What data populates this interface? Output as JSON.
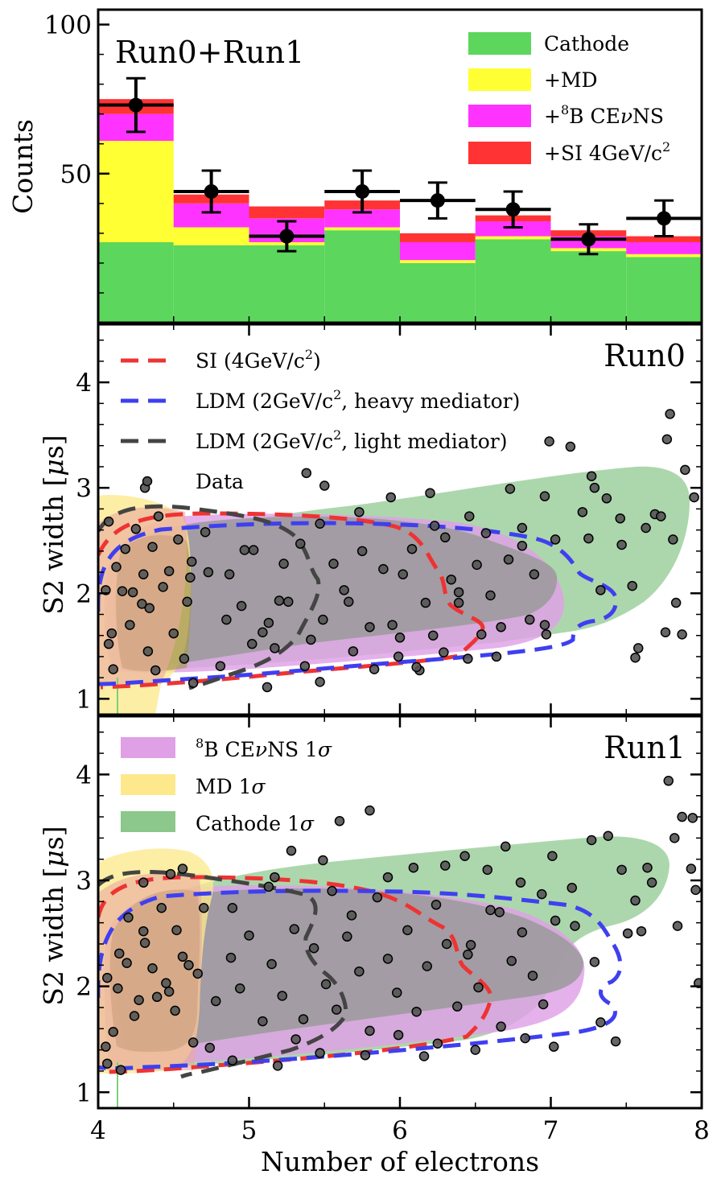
{
  "chart_data": [
    {
      "type": "bar",
      "panel": "top",
      "stacked": true,
      "title": "Run0+Run1",
      "xlabel": "",
      "ylabel": "Counts",
      "xlim": [
        4,
        8
      ],
      "ylim": [
        0,
        105
      ],
      "yticks": [
        50,
        100
      ],
      "bin_edges": [
        4.0,
        4.5,
        5.0,
        5.5,
        6.0,
        6.5,
        7.0,
        7.5,
        8.0
      ],
      "series": [
        {
          "name": "Cathode",
          "color": "#5cd65c",
          "values": [
            27,
            26,
            26,
            31,
            20,
            28,
            24,
            22
          ]
        },
        {
          "name": "+MD",
          "color": "#ffff33",
          "values": [
            34,
            6,
            1,
            1,
            1,
            1,
            1,
            1
          ]
        },
        {
          "name": "+8B CEvNS",
          "color": "#ff33ff",
          "values": [
            9,
            8,
            8,
            6,
            6,
            5,
            4,
            4
          ]
        },
        {
          "name": "+SI 4GeV/c2",
          "color": "#ff3333",
          "values": [
            5,
            3,
            4,
            3,
            3,
            2,
            2,
            2
          ]
        }
      ],
      "data": {
        "name": "Data",
        "x": [
          4.25,
          4.75,
          5.25,
          5.75,
          6.25,
          6.75,
          7.25,
          7.75
        ],
        "y": [
          73,
          44,
          29,
          44,
          41,
          38,
          28,
          35
        ],
        "yerr": [
          9,
          7,
          5,
          7,
          6,
          6,
          5,
          6
        ]
      },
      "legend": {
        "position": "top-right",
        "cathode": "Cathode",
        "md": "+MD",
        "cevns_sup": "8",
        "cevns_main": "B CE",
        "cevns_nu": "ν",
        "cevns_end": "NS",
        "si_main": "+SI 4GeV/c",
        "si_sup": "2"
      }
    },
    {
      "type": "scatter",
      "panel": "middle",
      "title": "Run0",
      "xlabel": "",
      "ylabel": "S2 width [",
      "ylabel_mu": "μ",
      "ylabel_end": "s]",
      "xlim": [
        4,
        8
      ],
      "ylim": [
        0.85,
        4.55
      ],
      "yticks": [
        1,
        2,
        3,
        4
      ],
      "contours": [
        "SI (4GeV/c2)",
        "LDM (2GeV/c2, heavy mediator)",
        "LDM (2GeV/c2, light mediator)"
      ],
      "bands": [
        "Cathode 1σ",
        "8B CEvNS 1σ",
        "MD 1σ"
      ],
      "legend": {
        "position": "top-left",
        "si_a": "SI (4GeV/c",
        "si_sup": "2",
        "si_b": ")",
        "heavy_a": "LDM (2GeV/c",
        "heavy_sup": "2",
        "heavy_b": ", heavy mediator)",
        "light_a": "LDM (2GeV/c",
        "light_sup": "2",
        "light_b": ", light mediator)",
        "data": "Data"
      },
      "points": [
        [
          4.07,
          2.68
        ],
        [
          4.12,
          2.25
        ],
        [
          4.18,
          2.42
        ],
        [
          4.25,
          2.61
        ],
        [
          4.3,
          2.18
        ],
        [
          4.34,
          1.86
        ],
        [
          4.4,
          2.73
        ],
        [
          4.47,
          2.21
        ],
        [
          4.53,
          2.51
        ],
        [
          4.62,
          2.3
        ],
        [
          4.07,
          1.52
        ],
        [
          4.1,
          1.28
        ],
        [
          4.16,
          2.02
        ],
        [
          4.21,
          1.7
        ],
        [
          4.29,
          1.9
        ],
        [
          4.33,
          1.45
        ],
        [
          4.38,
          1.27
        ],
        [
          4.43,
          2.06
        ],
        [
          4.5,
          1.62
        ],
        [
          4.57,
          1.38
        ],
        [
          4.73,
          2.2
        ],
        [
          4.87,
          2.18
        ],
        [
          4.95,
          1.88
        ],
        [
          5.03,
          2.41
        ],
        [
          5.09,
          1.63
        ],
        [
          5.17,
          1.48
        ],
        [
          5.26,
          1.92
        ],
        [
          5.34,
          2.47
        ],
        [
          5.41,
          1.56
        ],
        [
          5.47,
          2.66
        ],
        [
          5.56,
          2.28
        ],
        [
          5.63,
          2.03
        ],
        [
          5.69,
          1.45
        ],
        [
          5.75,
          2.4
        ],
        [
          5.8,
          1.68
        ],
        [
          5.89,
          2.23
        ],
        [
          5.95,
          1.7
        ],
        [
          6.02,
          2.18
        ],
        [
          6.08,
          2.42
        ],
        [
          6.17,
          1.91
        ],
        [
          6.22,
          1.6
        ],
        [
          6.3,
          2.53
        ],
        [
          6.39,
          2.01
        ],
        [
          6.45,
          1.38
        ],
        [
          6.51,
          2.27
        ],
        [
          6.6,
          1.98
        ],
        [
          6.67,
          1.68
        ],
        [
          6.72,
          2.32
        ],
        [
          6.81,
          2.45
        ],
        [
          6.89,
          2.18
        ],
        [
          6.96,
          1.7
        ],
        [
          4.71,
          2.58
        ],
        [
          4.97,
          2.41
        ],
        [
          5.23,
          2.28
        ],
        [
          5.49,
          1.75
        ],
        [
          5.83,
          1.28
        ],
        [
          6.13,
          1.27
        ],
        [
          6.39,
          1.91
        ],
        [
          6.64,
          1.4
        ],
        [
          4.05,
          2.03
        ],
        [
          4.09,
          1.62
        ],
        [
          4.23,
          2.01
        ],
        [
          4.36,
          2.44
        ],
        [
          4.59,
          1.92
        ],
        [
          4.81,
          1.31
        ],
        [
          5.12,
          1.11
        ],
        [
          5.37,
          1.31
        ],
        [
          5.99,
          1.4
        ],
        [
          6.54,
          1.61
        ],
        [
          5.38,
          3.14
        ],
        [
          5.5,
          3.02
        ],
        [
          5.73,
          2.77
        ],
        [
          5.94,
          2.91
        ],
        [
          6.2,
          2.95
        ],
        [
          6.23,
          2.64
        ],
        [
          6.46,
          2.73
        ],
        [
          6.57,
          2.57
        ],
        [
          6.73,
          2.99
        ],
        [
          6.81,
          2.62
        ],
        [
          6.96,
          2.92
        ],
        [
          6.99,
          3.44
        ],
        [
          7.13,
          3.39
        ],
        [
          7.21,
          2.77
        ],
        [
          7.25,
          2.52
        ],
        [
          7.29,
          3.0
        ],
        [
          7.37,
          2.9
        ],
        [
          7.47,
          2.46
        ],
        [
          7.54,
          2.07
        ],
        [
          7.63,
          2.62
        ],
        [
          7.69,
          2.75
        ],
        [
          7.77,
          3.46
        ],
        [
          7.79,
          3.7
        ],
        [
          7.89,
          3.17
        ],
        [
          7.95,
          2.91
        ],
        [
          7.81,
          2.51
        ],
        [
          7.73,
          2.73
        ],
        [
          7.58,
          1.48
        ],
        [
          7.46,
          2.71
        ],
        [
          7.27,
          3.11
        ],
        [
          7.03,
          2.51
        ],
        [
          7.33,
          2.03
        ],
        [
          7.56,
          1.39
        ],
        [
          7.76,
          1.63
        ],
        [
          7.87,
          1.61
        ],
        [
          7.83,
          1.91
        ],
        [
          4.63,
          1.15
        ],
        [
          5.13,
          1.72
        ],
        [
          5.47,
          1.16
        ],
        [
          6.11,
          1.3
        ],
        [
          6.29,
          1.44
        ],
        [
          5.02,
          1.52
        ],
        [
          4.31,
          3.0
        ],
        [
          4.61,
          2.15
        ],
        [
          4.85,
          1.75
        ],
        [
          5.66,
          1.92
        ],
        [
          6.0,
          1.58
        ],
        [
          6.34,
          2.13
        ],
        [
          6.86,
          1.75
        ],
        [
          6.97,
          1.61
        ],
        [
          5.2,
          1.93
        ]
      ]
    },
    {
      "type": "scatter",
      "panel": "bottom",
      "title": "Run1",
      "xlabel": "Number of electrons",
      "ylabel": "S2 width [",
      "ylabel_mu": "μ",
      "ylabel_end": "s]",
      "xlim": [
        4,
        8
      ],
      "ylim": [
        0.85,
        4.55
      ],
      "xticks": [
        4,
        5,
        6,
        7,
        8
      ],
      "yticks": [
        1,
        2,
        3,
        4
      ],
      "legend": {
        "position": "top-left",
        "cevns_sup": "8",
        "cevns_main": "B CE",
        "cevns_nu": "ν",
        "cevns_end": "NS 1",
        "cevns_sigma": "σ",
        "md_main": "MD 1",
        "md_sigma": "σ",
        "cath_main": "Cathode 1",
        "cath_sigma": "σ"
      },
      "points": [
        [
          4.06,
          2.08
        ],
        [
          4.1,
          1.57
        ],
        [
          4.14,
          2.31
        ],
        [
          4.2,
          2.65
        ],
        [
          4.27,
          1.87
        ],
        [
          4.31,
          2.41
        ],
        [
          4.36,
          2.17
        ],
        [
          4.42,
          2.74
        ],
        [
          4.47,
          1.95
        ],
        [
          4.52,
          2.53
        ],
        [
          4.56,
          2.28
        ],
        [
          4.66,
          2.12
        ],
        [
          4.05,
          1.43
        ],
        [
          4.13,
          1.98
        ],
        [
          4.19,
          2.22
        ],
        [
          4.24,
          1.72
        ],
        [
          4.3,
          2.52
        ],
        [
          4.39,
          1.9
        ],
        [
          4.45,
          2.03
        ],
        [
          4.51,
          1.77
        ],
        [
          4.6,
          2.2
        ],
        [
          4.7,
          2.74
        ],
        [
          4.78,
          1.86
        ],
        [
          4.88,
          2.27
        ],
        [
          4.94,
          1.98
        ],
        [
          5.0,
          2.48
        ],
        [
          5.09,
          1.67
        ],
        [
          5.15,
          2.21
        ],
        [
          5.22,
          1.91
        ],
        [
          5.3,
          2.54
        ],
        [
          5.36,
          1.69
        ],
        [
          5.43,
          2.36
        ],
        [
          5.51,
          2.02
        ],
        [
          5.58,
          1.78
        ],
        [
          5.65,
          2.47
        ],
        [
          5.73,
          2.14
        ],
        [
          5.8,
          1.58
        ],
        [
          5.85,
          2.84
        ],
        [
          5.92,
          2.26
        ],
        [
          5.98,
          1.94
        ],
        [
          6.05,
          2.53
        ],
        [
          6.11,
          1.76
        ],
        [
          6.18,
          2.19
        ],
        [
          6.25,
          1.46
        ],
        [
          6.31,
          2.4
        ],
        [
          6.38,
          1.81
        ],
        [
          6.45,
          2.3
        ],
        [
          6.52,
          1.99
        ],
        [
          6.6,
          2.72
        ],
        [
          6.67,
          1.62
        ],
        [
          6.74,
          2.24
        ],
        [
          6.81,
          2.51
        ],
        [
          6.88,
          2.1
        ],
        [
          6.95,
          1.83
        ],
        [
          7.03,
          2.62
        ],
        [
          4.63,
          1.47
        ],
        [
          4.89,
          1.3
        ],
        [
          5.19,
          1.25
        ],
        [
          5.47,
          1.37
        ],
        [
          5.77,
          1.35
        ],
        [
          6.16,
          1.34
        ],
        [
          6.5,
          1.4
        ],
        [
          6.83,
          1.51
        ],
        [
          7.02,
          1.43
        ],
        [
          7.33,
          1.66
        ],
        [
          7.43,
          1.48
        ],
        [
          4.15,
          1.21
        ],
        [
          4.74,
          1.42
        ],
        [
          5.31,
          1.5
        ],
        [
          5.99,
          1.54
        ],
        [
          5.28,
          3.28
        ],
        [
          5.49,
          3.19
        ],
        [
          5.6,
          3.56
        ],
        [
          5.8,
          3.66
        ],
        [
          5.92,
          3.03
        ],
        [
          6.09,
          3.12
        ],
        [
          6.3,
          3.14
        ],
        [
          6.43,
          3.23
        ],
        [
          6.58,
          3.1
        ],
        [
          6.7,
          3.32
        ],
        [
          6.8,
          2.98
        ],
        [
          7.01,
          3.23
        ],
        [
          7.14,
          2.93
        ],
        [
          7.27,
          3.38
        ],
        [
          7.38,
          3.42
        ],
        [
          7.47,
          3.1
        ],
        [
          7.56,
          2.81
        ],
        [
          7.64,
          3.12
        ],
        [
          7.78,
          3.94
        ],
        [
          7.82,
          3.4
        ],
        [
          7.87,
          3.6
        ],
        [
          7.94,
          3.59
        ],
        [
          7.96,
          2.91
        ],
        [
          7.93,
          3.11
        ],
        [
          7.67,
          2.98
        ],
        [
          7.51,
          2.5
        ],
        [
          7.6,
          2.52
        ],
        [
          7.16,
          2.57
        ],
        [
          6.94,
          2.87
        ],
        [
          6.66,
          2.7
        ],
        [
          7.98,
          2.03
        ],
        [
          7.84,
          2.57
        ],
        [
          7.29,
          2.23
        ],
        [
          5.17,
          3.03
        ],
        [
          5.68,
          2.67
        ],
        [
          6.24,
          2.77
        ],
        [
          6.47,
          2.39
        ],
        [
          4.48,
          3.06
        ],
        [
          4.3,
          2.98
        ],
        [
          4.56,
          3.11
        ],
        [
          4.06,
          1.27
        ],
        [
          4.89,
          2.74
        ],
        [
          5.13,
          2.94
        ],
        [
          5.55,
          2.9
        ]
      ]
    }
  ]
}
